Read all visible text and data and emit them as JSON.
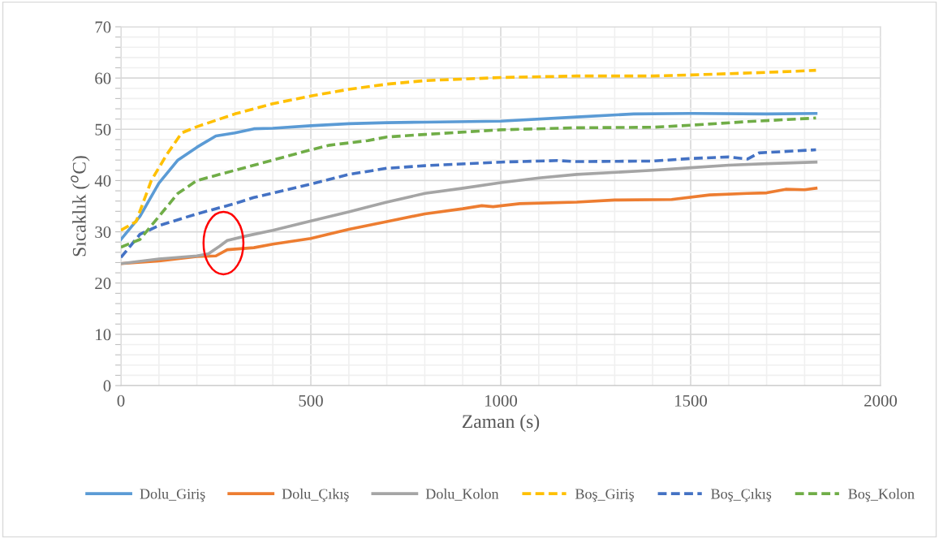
{
  "chart_data": {
    "type": "line",
    "xlabel": "Zaman (s)",
    "ylabel": "Sıcaklık ($^{o}$C)",
    "xlim": [
      0,
      2000
    ],
    "ylim": [
      0,
      70
    ],
    "xticks": [
      0,
      {
        "value": 100,
        "label": null
      },
      {
        "value": 200,
        "label": null
      },
      {
        "value": 300,
        "label": null
      },
      {
        "value": 400,
        "label": null
      },
      500,
      {
        "value": 600,
        "label": null
      },
      {
        "value": 700,
        "label": null
      },
      {
        "value": 800,
        "label": null
      },
      {
        "value": 900,
        "label": null
      },
      1000,
      {
        "value": 1100,
        "label": null
      },
      {
        "value": 1200,
        "label": null
      },
      {
        "value": 1300,
        "label": null
      },
      {
        "value": 1400,
        "label": null
      },
      1500,
      {
        "value": 1600,
        "label": null
      },
      {
        "value": 1700,
        "label": null
      },
      {
        "value": 1800,
        "label": null
      },
      {
        "value": 1900,
        "label": null
      },
      2000
    ],
    "yticks": [
      0,
      {
        "value": 2,
        "label": null
      },
      {
        "value": 4,
        "label": null
      },
      {
        "value": 6,
        "label": null
      },
      {
        "value": 8,
        "label": null
      },
      10,
      {
        "value": 12,
        "label": null
      },
      {
        "value": 14,
        "label": null
      },
      {
        "value": 16,
        "label": null
      },
      {
        "value": 18,
        "label": null
      },
      20,
      {
        "value": 22,
        "label": null
      },
      {
        "value": 24,
        "label": null
      },
      {
        "value": 26,
        "label": null
      },
      {
        "value": 28,
        "label": null
      },
      30,
      {
        "value": 32,
        "label": null
      },
      {
        "value": 34,
        "label": null
      },
      {
        "value": 36,
        "label": null
      },
      {
        "value": 38,
        "label": null
      },
      40,
      {
        "value": 42,
        "label": null
      },
      {
        "value": 44,
        "label": null
      },
      {
        "value": 46,
        "label": null
      },
      {
        "value": 48,
        "label": null
      },
      50,
      {
        "value": 52,
        "label": null
      },
      {
        "value": 54,
        "label": null
      },
      {
        "value": 56,
        "label": null
      },
      {
        "value": 58,
        "label": null
      },
      60,
      {
        "value": 62,
        "label": null
      },
      {
        "value": 64,
        "label": null
      },
      {
        "value": 66,
        "label": null
      },
      {
        "value": 68,
        "label": null
      },
      70
    ],
    "grid": true,
    "legend": "bottom",
    "marker": "none",
    "series": [
      {
        "name": "Dolu_Giriş",
        "color": "#5b9bd5",
        "line_style": "solid",
        "x": [
          0,
          50,
          100,
          150,
          200,
          250,
          300,
          350,
          400,
          500,
          600,
          700,
          800,
          1000,
          1200,
          1350,
          1500,
          1700,
          1830
        ],
        "values": [
          28.5,
          33,
          39.5,
          44,
          46.5,
          48.7,
          49.3,
          50.1,
          50.2,
          50.7,
          51.1,
          51.3,
          51.4,
          51.6,
          52.4,
          53,
          53.1,
          53,
          53.1
        ]
      },
      {
        "name": "Dolu_Çıkış",
        "color": "#ed7d31",
        "line_style": "solid",
        "x": [
          0,
          100,
          200,
          250,
          280,
          350,
          400,
          500,
          600,
          700,
          800,
          900,
          950,
          980,
          1050,
          1200,
          1300,
          1450,
          1550,
          1650,
          1700,
          1750,
          1800,
          1830
        ],
        "values": [
          23.8,
          24.3,
          25.2,
          25.3,
          26.5,
          26.9,
          27.6,
          28.7,
          30.5,
          32,
          33.5,
          34.5,
          35.1,
          34.9,
          35.5,
          35.8,
          36.2,
          36.3,
          37.2,
          37.5,
          37.6,
          38.3,
          38.2,
          38.5
        ]
      },
      {
        "name": "Dolu_Kolon",
        "color": "#a5a5a5",
        "line_style": "solid",
        "x": [
          0,
          100,
          200,
          230,
          260,
          280,
          330,
          400,
          500,
          600,
          700,
          800,
          900,
          1000,
          1100,
          1200,
          1400,
          1500,
          1600,
          1700,
          1830
        ],
        "values": [
          23.8,
          24.7,
          25.3,
          25.7,
          27.2,
          28.3,
          29.2,
          30.3,
          32.1,
          33.9,
          35.8,
          37.5,
          38.5,
          39.6,
          40.5,
          41.2,
          42,
          42.5,
          43,
          43.3,
          43.6
        ]
      },
      {
        "name": "Boş_Giriş",
        "color": "#ffc000",
        "line_style": "dashed",
        "x": [
          0,
          40,
          80,
          120,
          160,
          200,
          300,
          400,
          500,
          600,
          700,
          800,
          1000,
          1200,
          1400,
          1500,
          1700,
          1830
        ],
        "values": [
          30.3,
          32,
          40,
          45,
          49.3,
          50.5,
          53,
          55,
          56.5,
          57.8,
          58.8,
          59.5,
          60.1,
          60.4,
          60.4,
          60.6,
          61.1,
          61.5
        ]
      },
      {
        "name": "Boş_Çıkış",
        "color": "#4472c4",
        "line_style": "dashed",
        "x": [
          0,
          50,
          100,
          200,
          300,
          350,
          500,
          600,
          700,
          800,
          1000,
          1150,
          1200,
          1400,
          1500,
          1600,
          1650,
          1680,
          1830
        ],
        "values": [
          25,
          29.5,
          31.2,
          33.5,
          35.5,
          36.7,
          39.3,
          41.2,
          42.4,
          42.9,
          43.6,
          43.9,
          43.7,
          43.8,
          44.3,
          44.6,
          44.2,
          45.4,
          46
        ]
      },
      {
        "name": "Boş_Kolon",
        "color": "#70ad47",
        "line_style": "dashed",
        "x": [
          0,
          50,
          100,
          150,
          200,
          300,
          400,
          500,
          550,
          650,
          700,
          800,
          1000,
          1200,
          1400,
          1500,
          1650,
          1830
        ],
        "values": [
          27,
          28.5,
          33,
          37.5,
          40,
          42,
          44,
          46,
          46.9,
          47.8,
          48.5,
          49,
          49.9,
          50.3,
          50.4,
          50.8,
          51.5,
          52.2
        ]
      }
    ]
  }
}
